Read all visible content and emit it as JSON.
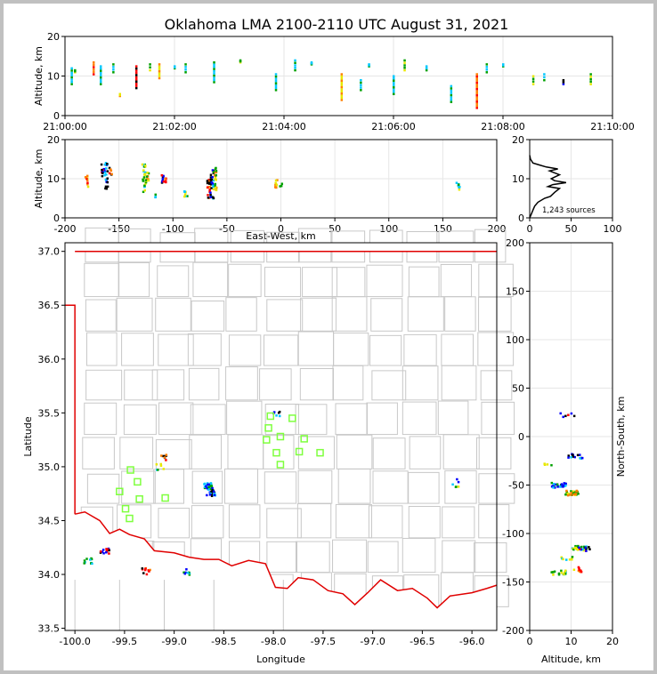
{
  "title": "Oklahoma LMA 2100-2110 UTC August 31, 2021",
  "colors": {
    "stations": "#7fff3f",
    "state_border": "#e00000",
    "county_lines": "#c8c8c8",
    "density_line": "#000000",
    "points": [
      "#0000ff",
      "#00c8ff",
      "#00a000",
      "#e8e800",
      "#ff8000",
      "#ff0000",
      "#000000"
    ]
  },
  "chart_data": [
    {
      "id": "time_height",
      "type": "scatter",
      "ylabel": "Altitude, km",
      "xlabel": "",
      "xlim": [
        0,
        10
      ],
      "ylim": [
        0,
        20
      ],
      "x_ticks": [
        "21:00:00",
        "21:02:00",
        "21:04:00",
        "21:06:00",
        "21:08:00",
        "21:10:00"
      ],
      "y_ticks": [
        "0",
        "10",
        "20"
      ],
      "columns": [
        {
          "t": 0.12,
          "z0": 8,
          "z1": 12,
          "c": 1
        },
        {
          "t": 0.18,
          "z0": 11,
          "z1": 11.5,
          "c": 2
        },
        {
          "t": 0.52,
          "z0": 10.5,
          "z1": 13.5,
          "c": 4
        },
        {
          "t": 0.65,
          "z0": 8,
          "z1": 12.5,
          "c": 1
        },
        {
          "t": 0.88,
          "z0": 11,
          "z1": 13,
          "c": 1
        },
        {
          "t": 1.0,
          "z0": 5,
          "z1": 5.5,
          "c": 3
        },
        {
          "t": 1.3,
          "z0": 7,
          "z1": 12.5,
          "c": 5
        },
        {
          "t": 1.55,
          "z0": 11.5,
          "z1": 13,
          "c": 2
        },
        {
          "t": 1.72,
          "z0": 9.5,
          "z1": 13,
          "c": 3
        },
        {
          "t": 2.0,
          "z0": 12,
          "z1": 12.5,
          "c": 1
        },
        {
          "t": 2.2,
          "z0": 11,
          "z1": 13,
          "c": 1
        },
        {
          "t": 2.72,
          "z0": 8.5,
          "z1": 13.5,
          "c": 1
        },
        {
          "t": 3.2,
          "z0": 13.5,
          "z1": 14,
          "c": 2
        },
        {
          "t": 3.85,
          "z0": 6.5,
          "z1": 10.5,
          "c": 1
        },
        {
          "t": 4.2,
          "z0": 11.5,
          "z1": 14,
          "c": 1
        },
        {
          "t": 4.5,
          "z0": 13,
          "z1": 13.5,
          "c": 1
        },
        {
          "t": 5.05,
          "z0": 4,
          "z1": 10.5,
          "c": 3
        },
        {
          "t": 5.4,
          "z0": 6.5,
          "z1": 9,
          "c": 1
        },
        {
          "t": 5.55,
          "z0": 12.5,
          "z1": 13,
          "c": 1
        },
        {
          "t": 6.0,
          "z0": 5.5,
          "z1": 10,
          "c": 1
        },
        {
          "t": 6.2,
          "z0": 11.5,
          "z1": 14,
          "c": 2
        },
        {
          "t": 6.6,
          "z0": 11.5,
          "z1": 12.5,
          "c": 1
        },
        {
          "t": 7.05,
          "z0": 3.5,
          "z1": 7.5,
          "c": 1
        },
        {
          "t": 7.52,
          "z0": 2,
          "z1": 10.5,
          "c": 4
        },
        {
          "t": 7.7,
          "z0": 11,
          "z1": 13,
          "c": 1
        },
        {
          "t": 8.0,
          "z0": 12.5,
          "z1": 13,
          "c": 1
        },
        {
          "t": 8.55,
          "z0": 8,
          "z1": 10,
          "c": 2
        },
        {
          "t": 8.75,
          "z0": 9,
          "z1": 10.5,
          "c": 1
        },
        {
          "t": 9.1,
          "z0": 8,
          "z1": 9,
          "c": 6
        },
        {
          "t": 9.6,
          "z0": 8,
          "z1": 10.5,
          "c": 2
        }
      ]
    },
    {
      "id": "ew_height",
      "type": "scatter",
      "xlabel": "East-West, km",
      "ylabel": "Altitude, km",
      "xlim": [
        -200,
        200
      ],
      "ylim": [
        0,
        20
      ],
      "x_ticks": [
        "-200",
        "-150",
        "-100",
        "-50",
        "0",
        "50",
        "100",
        "150",
        "200"
      ],
      "y_ticks": [
        "0",
        "10",
        "20"
      ],
      "columns": [
        {
          "x": -180,
          "z0": 8,
          "z1": 11,
          "c": 3
        },
        {
          "x": -165,
          "z0": 10.5,
          "z1": 14,
          "c": 5
        },
        {
          "x": -162,
          "z0": 7.5,
          "z1": 14.5,
          "c": 6
        },
        {
          "x": -158,
          "z0": 11,
          "z1": 13,
          "c": 4
        },
        {
          "x": -127,
          "z0": 6.5,
          "z1": 14,
          "c": 1
        },
        {
          "x": -124,
          "z0": 9,
          "z1": 13,
          "c": 2
        },
        {
          "x": -115,
          "z0": 5,
          "z1": 6,
          "c": 1
        },
        {
          "x": -110,
          "z0": 8,
          "z1": 11,
          "c": 5
        },
        {
          "x": -108,
          "z0": 9,
          "z1": 10.5,
          "c": 3
        },
        {
          "x": -88,
          "z0": 4.5,
          "z1": 7,
          "c": 1
        },
        {
          "x": -67,
          "z0": 4.5,
          "z1": 10,
          "c": 4
        },
        {
          "x": -64,
          "z0": 5,
          "z1": 12.5,
          "c": 6
        },
        {
          "x": -61,
          "z0": 6,
          "z1": 13,
          "c": 2
        },
        {
          "x": -4,
          "z0": 7.5,
          "z1": 10,
          "c": 3
        },
        {
          "x": 0,
          "z0": 8,
          "z1": 9,
          "c": 1
        },
        {
          "x": 164,
          "z0": 6.5,
          "z1": 9,
          "c": 1
        }
      ]
    },
    {
      "id": "alt_histogram",
      "type": "line",
      "xlim": [
        0,
        100
      ],
      "ylim": [
        0,
        20
      ],
      "x_ticks": [
        "0",
        "50",
        "100"
      ],
      "y_ticks": [
        "0",
        "10",
        "20"
      ],
      "annotation": "1,243 sources",
      "x": [
        0,
        2,
        4,
        6,
        10,
        18,
        25,
        30,
        36,
        22,
        28,
        44,
        30,
        26,
        36,
        24,
        34,
        20,
        12,
        4,
        1,
        0
      ],
      "y": [
        0,
        1,
        2,
        3,
        4,
        5,
        5.5,
        6.5,
        7.5,
        8,
        8.5,
        9,
        9.5,
        10,
        11,
        12,
        12.5,
        13,
        13.5,
        14,
        15,
        16
      ]
    },
    {
      "id": "plan_map",
      "type": "scatter",
      "xlabel": "Longitude",
      "ylabel": "Latitude",
      "xlim": [
        -100.1,
        -95.75
      ],
      "ylim": [
        33.48,
        37.08
      ],
      "x_ticks": [
        "-100.0",
        "-99.5",
        "-99.0",
        "-98.5",
        "-98.0",
        "-97.5",
        "-97.0",
        "-96.5",
        "-96.0"
      ],
      "y_ticks": [
        "33.5",
        "34.0",
        "34.5",
        "35.0",
        "35.5",
        "36.0",
        "36.5",
        "37.0"
      ],
      "stations": [
        [
          -99.55,
          34.77
        ],
        [
          -99.44,
          34.97
        ],
        [
          -99.37,
          34.86
        ],
        [
          -99.35,
          34.7
        ],
        [
          -99.49,
          34.61
        ],
        [
          -99.45,
          34.52
        ],
        [
          -99.09,
          34.71
        ],
        [
          -98.03,
          35.47
        ],
        [
          -97.81,
          35.45
        ],
        [
          -98.05,
          35.36
        ],
        [
          -98.07,
          35.25
        ],
        [
          -97.93,
          35.28
        ],
        [
          -97.69,
          35.26
        ],
        [
          -97.97,
          35.13
        ],
        [
          -97.93,
          35.02
        ],
        [
          -97.74,
          35.14
        ],
        [
          -97.53,
          35.13
        ]
      ],
      "clusters": [
        {
          "lon": -99.87,
          "lat": 34.13,
          "n": 10,
          "c": 1
        },
        {
          "lon": -99.7,
          "lat": 34.22,
          "n": 16,
          "c": 5
        },
        {
          "lon": -99.28,
          "lat": 34.03,
          "n": 10,
          "c": 4
        },
        {
          "lon": -99.1,
          "lat": 35.09,
          "n": 8,
          "c": 4
        },
        {
          "lon": -99.14,
          "lat": 35.0,
          "n": 6,
          "c": 1
        },
        {
          "lon": -98.88,
          "lat": 34.02,
          "n": 8,
          "c": 0
        },
        {
          "lon": -98.66,
          "lat": 34.82,
          "n": 26,
          "c": 0
        },
        {
          "lon": -98.63,
          "lat": 34.76,
          "n": 18,
          "c": 6
        },
        {
          "lon": -97.98,
          "lat": 35.49,
          "n": 6,
          "c": 6
        },
        {
          "lon": -96.17,
          "lat": 34.86,
          "n": 3,
          "c": 0
        },
        {
          "lon": -96.12,
          "lat": 34.82,
          "n": 3,
          "c": 1
        }
      ]
    },
    {
      "id": "ns_height",
      "type": "scatter",
      "xlabel": "Altitude, km",
      "ylabel": "North-South, km",
      "xlim": [
        0,
        20
      ],
      "ylim": [
        -200,
        200
      ],
      "x_ticks": [
        "0",
        "10",
        "20"
      ],
      "y_ticks": [
        "-200",
        "-150",
        "-100",
        "-50",
        "0",
        "50",
        "100",
        "150",
        "200"
      ],
      "clusters": [
        {
          "z": 9,
          "y": 23,
          "n": 6,
          "c": 5
        },
        {
          "z": 11,
          "y": -20,
          "n": 14,
          "c": 6
        },
        {
          "z": 5,
          "y": -30,
          "n": 4,
          "c": 1
        },
        {
          "z": 7,
          "y": -50,
          "n": 24,
          "c": 0
        },
        {
          "z": 10,
          "y": -58,
          "n": 30,
          "c": 2
        },
        {
          "z": 12,
          "y": -115,
          "n": 24,
          "c": 1
        },
        {
          "z": 13,
          "y": -116,
          "n": 10,
          "c": 5
        },
        {
          "z": 9,
          "y": -126,
          "n": 8,
          "c": 1
        },
        {
          "z": 7,
          "y": -140,
          "n": 16,
          "c": 1
        },
        {
          "z": 11,
          "y": -137,
          "n": 10,
          "c": 3
        }
      ]
    }
  ],
  "map_lines": {
    "state_border": [
      [
        -100.0,
        37.0
      ],
      [
        -95.75,
        37.0
      ]
    ],
    "panhandle": [
      [
        -100.1,
        36.5
      ],
      [
        -100.0,
        36.5
      ],
      [
        -100.0,
        34.56
      ]
    ],
    "red_river": [
      [
        -100.0,
        34.56
      ],
      [
        -99.9,
        34.58
      ],
      [
        -99.75,
        34.5
      ],
      [
        -99.65,
        34.38
      ],
      [
        -99.55,
        34.42
      ],
      [
        -99.45,
        34.37
      ],
      [
        -99.3,
        34.33
      ],
      [
        -99.2,
        34.22
      ],
      [
        -99.0,
        34.2
      ],
      [
        -98.85,
        34.16
      ],
      [
        -98.7,
        34.14
      ],
      [
        -98.55,
        34.14
      ],
      [
        -98.42,
        34.08
      ],
      [
        -98.25,
        34.13
      ],
      [
        -98.08,
        34.1
      ],
      [
        -97.98,
        33.88
      ],
      [
        -97.86,
        33.87
      ],
      [
        -97.75,
        33.97
      ],
      [
        -97.6,
        33.95
      ],
      [
        -97.45,
        33.85
      ],
      [
        -97.3,
        33.82
      ],
      [
        -97.18,
        33.72
      ],
      [
        -97.05,
        33.83
      ],
      [
        -96.92,
        33.95
      ],
      [
        -96.75,
        33.85
      ],
      [
        -96.6,
        33.87
      ],
      [
        -96.45,
        33.78
      ],
      [
        -96.35,
        33.69
      ],
      [
        -96.22,
        33.8
      ],
      [
        -96.0,
        33.83
      ],
      [
        -95.85,
        33.87
      ],
      [
        -95.75,
        33.9
      ]
    ]
  }
}
